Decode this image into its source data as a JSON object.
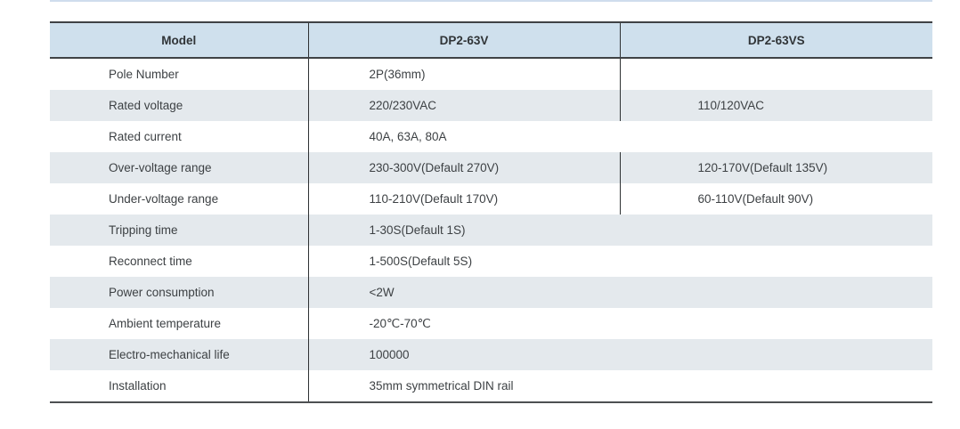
{
  "page": {
    "background": "#ffffff",
    "top_rule_color": "#cfdded"
  },
  "table": {
    "colors": {
      "header_bg": "#cfe0ed",
      "alt_row_bg": "#e4e9ed",
      "row_bg": "#ffffff",
      "horizontal_rule": "#3f4245",
      "vertical_divider": "#2e3133",
      "text": "#3d4144"
    },
    "headers": [
      "Model",
      "DP2-63V",
      "DP2-63VS"
    ],
    "rows": [
      {
        "label": "Pole Number",
        "values": [
          "2P(36mm)",
          ""
        ],
        "spans_both_models": false
      },
      {
        "label": "Rated voltage",
        "values": [
          "220/230VAC",
          "110/120VAC"
        ],
        "spans_both_models": false
      },
      {
        "label": "Rated current",
        "values": [
          "40A, 63A, 80A"
        ],
        "spans_both_models": true
      },
      {
        "label": "Over-voltage range",
        "values": [
          "230-300V(Default 270V)",
          "120-170V(Default 135V)"
        ],
        "spans_both_models": false
      },
      {
        "label": "Under-voltage range",
        "values": [
          "110-210V(Default 170V)",
          "60-110V(Default 90V)"
        ],
        "spans_both_models": false
      },
      {
        "label": "Tripping time",
        "values": [
          "1-30S(Default 1S)"
        ],
        "spans_both_models": true
      },
      {
        "label": "Reconnect time",
        "values": [
          "1-500S(Default 5S)"
        ],
        "spans_both_models": true
      },
      {
        "label": "Power consumption",
        "values": [
          "<2W"
        ],
        "spans_both_models": true
      },
      {
        "label": "Ambient temperature",
        "values": [
          "-20℃-70℃"
        ],
        "spans_both_models": true
      },
      {
        "label": "Electro-mechanical life",
        "values": [
          "100000"
        ],
        "spans_both_models": true
      },
      {
        "label": "Installation",
        "values": [
          "35mm symmetrical DIN rail"
        ],
        "spans_both_models": true
      }
    ]
  }
}
